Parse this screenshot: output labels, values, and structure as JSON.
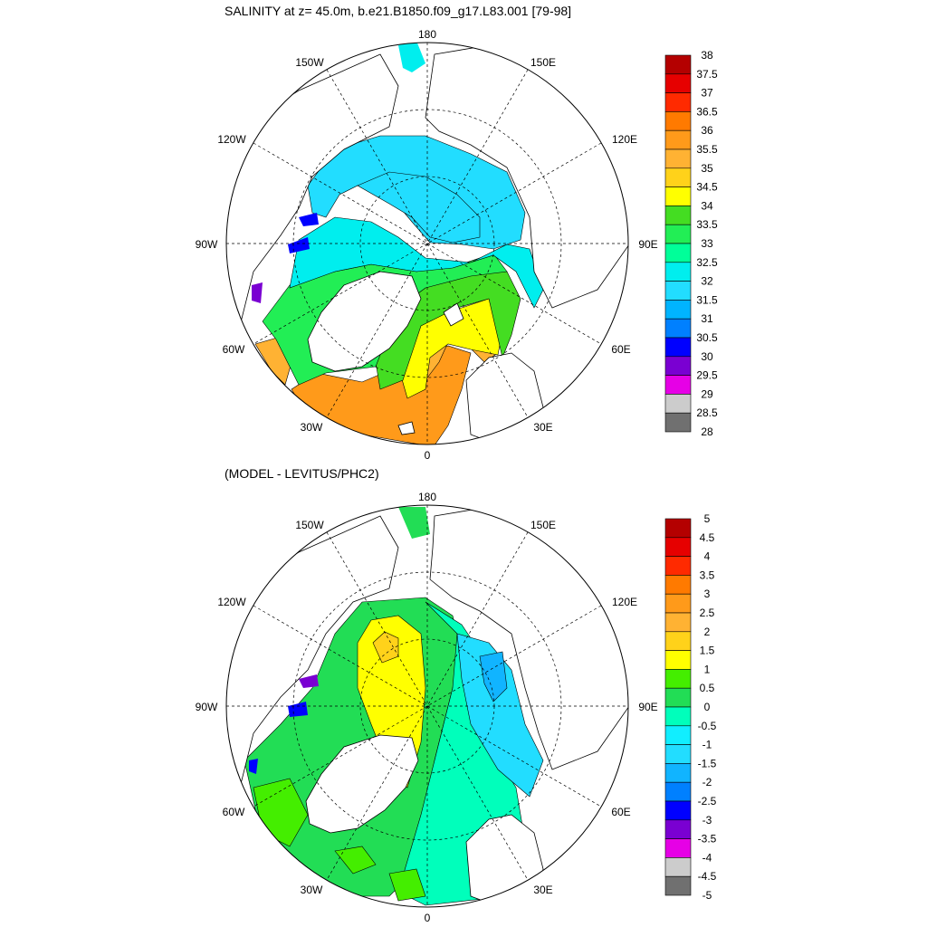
{
  "panels": [
    {
      "title": "SALINITY at z=  45.0m, b.e21.B1850.f09_g17.L83.001 [79-98]",
      "colorbar": {
        "labels": [
          "38",
          "37.5",
          "37",
          "36.5",
          "36",
          "35.5",
          "35",
          "34.5",
          "34",
          "33.5",
          "33",
          "32.5",
          "32",
          "31.5",
          "31",
          "30.5",
          "30",
          "29.5",
          "29",
          "28.5",
          "28"
        ],
        "colors": [
          "#b40000",
          "#e60000",
          "#ff2a00",
          "#ff7a00",
          "#ff9a1a",
          "#ffb233",
          "#ffd21a",
          "#ffff00",
          "#44dd22",
          "#22ee55",
          "#00ff99",
          "#00eeee",
          "#22ddff",
          "#00b4ff",
          "#0080ff",
          "#0000ff",
          "#7a00d2",
          "#e600e6",
          "#cccccc",
          "#707070"
        ]
      }
    },
    {
      "title": "(MODEL - LEVITUS/PHC2)",
      "colorbar": {
        "labels": [
          "5",
          "4.5",
          "4",
          "3.5",
          "3",
          "2.5",
          "2",
          "1.5",
          "1",
          "0.5",
          "0",
          "-0.5",
          "-1",
          "-1.5",
          "-2",
          "-2.5",
          "-3",
          "-3.5",
          "-4",
          "-4.5",
          "-5"
        ],
        "colors": [
          "#b40000",
          "#e60000",
          "#ff2a00",
          "#ff7a00",
          "#ff9a1a",
          "#ffb233",
          "#ffd21a",
          "#ffff00",
          "#44ee00",
          "#22dd55",
          "#00ffbb",
          "#11eeff",
          "#22ddff",
          "#11b4ff",
          "#0080ff",
          "#0000ff",
          "#7a00d2",
          "#e600e6",
          "#cccccc",
          "#707070"
        ]
      }
    }
  ],
  "lon_labels": [
    "180",
    "150E",
    "120E",
    "90E",
    "60E",
    "30E",
    "0",
    "30W",
    "60W",
    "90W",
    "120W",
    "150W"
  ],
  "palette": {
    "land": "#ffffff",
    "coast": "#000000",
    "grid": "#000000"
  }
}
